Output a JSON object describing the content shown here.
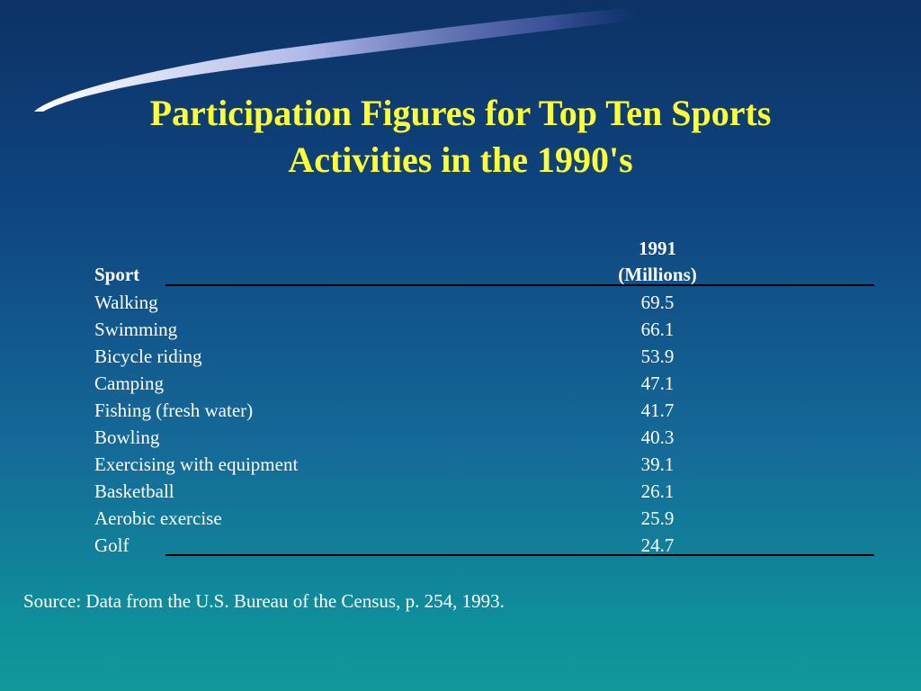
{
  "slide": {
    "title_line1": "Participation Figures for Top Ten Sports",
    "title_line2": "Activities in the 1990's"
  },
  "table": {
    "header_sport": "Sport",
    "header_year": "1991",
    "header_units": "(Millions)",
    "rows": [
      {
        "sport": "Walking",
        "value": "69.5"
      },
      {
        "sport": "Swimming",
        "value": "66.1"
      },
      {
        "sport": "Bicycle riding",
        "value": "53.9"
      },
      {
        "sport": "Camping",
        "value": "47.1"
      },
      {
        "sport": "Fishing (fresh water)",
        "value": "41.7"
      },
      {
        "sport": "Bowling",
        "value": "40.3"
      },
      {
        "sport": "Exercising with equipment",
        "value": "39.1"
      },
      {
        "sport": "Basketball",
        "value": "26.1"
      },
      {
        "sport": "Aerobic exercise",
        "value": "25.9"
      },
      {
        "sport": "Golf",
        "value": "24.7"
      }
    ]
  },
  "source": "Source: Data from the U.S. Bureau of the Census, p. 254, 1993.",
  "colors": {
    "title": "#ffff33",
    "text": "#ffffff",
    "background_top": "#0c3266",
    "background_bottom": "#10999a"
  }
}
